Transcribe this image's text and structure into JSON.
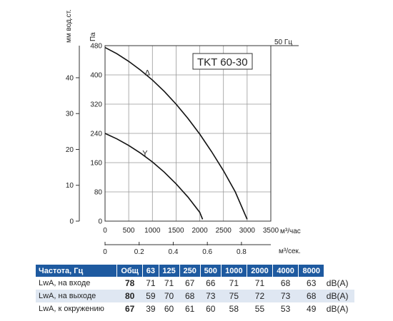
{
  "chart_data": {
    "type": "line",
    "model": "TKT 60-30",
    "frequency_label": "50 Гц",
    "y_left_label": "мм вод.ст.",
    "y_pa_label": "Па",
    "x_label": "м³/час",
    "x2_label": "м³/сек.",
    "xlim": [
      0,
      3500
    ],
    "ylim_pa": [
      0,
      480
    ],
    "x_ticks": [
      "0",
      "500",
      "1000",
      "1500",
      "2000",
      "2500",
      "3000",
      "3500"
    ],
    "y_pa_ticks": [
      "0",
      "80",
      "160",
      "240",
      "320",
      "400",
      "480"
    ],
    "y_mm_ticks": [
      "0",
      "10",
      "20",
      "30",
      "40"
    ],
    "x2_ticks": [
      "0",
      "0.2",
      "0.4",
      "0.6",
      "0.8"
    ],
    "series": [
      {
        "name": "Δ",
        "x": [
          0,
          250,
          500,
          750,
          1000,
          1250,
          1500,
          1750,
          2000,
          2250,
          2500,
          2750,
          3000
        ],
        "y": [
          475,
          458,
          437,
          413,
          386,
          355,
          320,
          281,
          238,
          190,
          138,
          80,
          5
        ]
      },
      {
        "name": "Y",
        "x": [
          0,
          250,
          500,
          750,
          1000,
          1250,
          1500,
          1750,
          2000,
          2060
        ],
        "y": [
          240,
          225,
          207,
          186,
          162,
          134,
          102,
          66,
          24,
          5
        ]
      }
    ]
  },
  "sound_table": {
    "headers": [
      "Частота, Гц",
      "Общ",
      "63",
      "125",
      "250",
      "500",
      "1000",
      "2000",
      "4000",
      "8000"
    ],
    "rows": [
      {
        "label": "LwA, на входе",
        "total": "78",
        "values": [
          "71",
          "71",
          "67",
          "66",
          "71",
          "71",
          "68",
          "63"
        ],
        "unit": "dB(A)"
      },
      {
        "label": "LwA, на выходе",
        "total": "80",
        "values": [
          "59",
          "70",
          "68",
          "73",
          "75",
          "72",
          "73",
          "68"
        ],
        "unit": "dB(A)"
      },
      {
        "label": "LwA, к окружению",
        "total": "67",
        "values": [
          "39",
          "60",
          "61",
          "60",
          "58",
          "55",
          "53",
          "49"
        ],
        "unit": "dB(A)"
      }
    ]
  }
}
